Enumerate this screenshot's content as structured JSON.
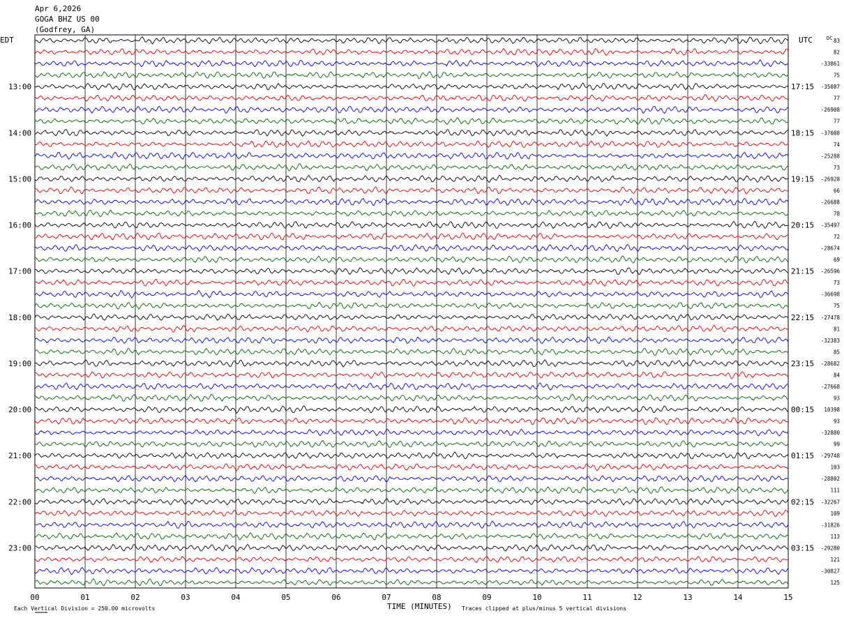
{
  "header": {
    "date": "Apr 6,2026",
    "station": "GOGA BHZ US 00",
    "location": "(Godfrey, GA)"
  },
  "chart_data": {
    "type": "line",
    "title": "",
    "left_timezone": "EDT",
    "right_timezone": "UTC",
    "dc_label": "DC",
    "xlabel": "TIME (MINUTES)",
    "x_ticks": [
      "00",
      "01",
      "02",
      "03",
      "04",
      "05",
      "06",
      "07",
      "08",
      "09",
      "10",
      "11",
      "12",
      "13",
      "14",
      "15"
    ],
    "xlim": [
      0,
      15
    ],
    "grid": true,
    "trace_colors": [
      "#000000",
      "#dd0000",
      "#0000dd",
      "#006400"
    ],
    "left_hour_labels": [
      "13:00",
      "14:00",
      "15:00",
      "16:00",
      "17:00",
      "18:00",
      "19:00",
      "20:00",
      "21:00",
      "22:00",
      "23:00"
    ],
    "right_hour_labels": [
      "17:15",
      "18:15",
      "19:15",
      "20:15",
      "21:15",
      "22:15",
      "23:15",
      "00:15",
      "01:15",
      "02:15",
      "03:15"
    ],
    "dc_values": [
      "83",
      "82",
      "-33861",
      "75",
      "-35087",
      "77",
      "-26908",
      "77",
      "-37088",
      "74",
      "-25288",
      "73",
      "-26928",
      "66",
      "-26688",
      "78",
      "-35497",
      "72",
      "-28674",
      "69",
      "-26596",
      "73",
      "-36698",
      "75",
      "-27478",
      "81",
      "-32383",
      "85",
      "-28682",
      "84",
      "-27668",
      "93",
      "10398",
      "93",
      "-32880",
      "99",
      "-29748",
      "103",
      "-28802",
      "111",
      "-32267",
      "109",
      "-31826",
      "113",
      "-29280",
      "121",
      "-30827",
      "125"
    ],
    "footer_scale": "Each Vertical Division =  250.00 microvolts",
    "footer_clip": "Traces clipped at plus/minus 5 vertical divisions"
  }
}
